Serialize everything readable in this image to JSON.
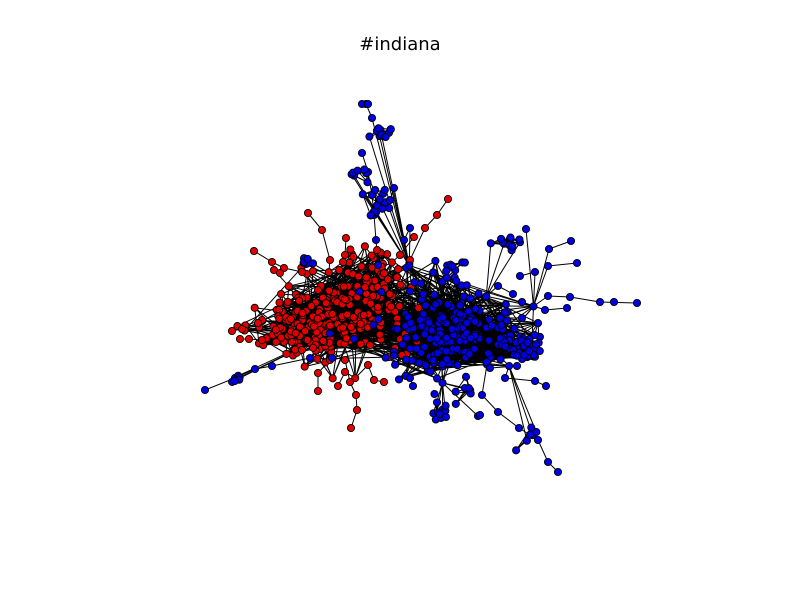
{
  "title": "#indiana",
  "colors": {
    "background": "#ffffff",
    "cluster_left": "#e00000",
    "cluster_right": "#0000e0",
    "edge": "#000000",
    "node_outline": "#000000"
  },
  "graph": {
    "type": "network",
    "clusters": [
      {
        "color_key": "cluster_left"
      },
      {
        "color_key": "cluster_right"
      }
    ]
  }
}
